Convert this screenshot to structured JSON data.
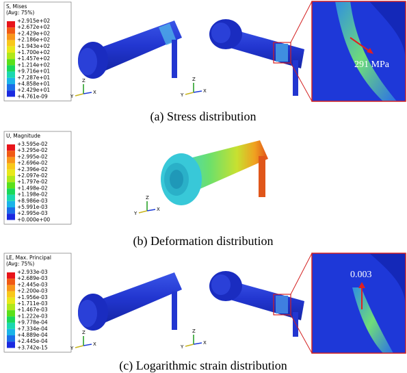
{
  "panels": [
    {
      "legend": {
        "title": [
          "S, Mises",
          "(Avg: 75%)"
        ],
        "labels": [
          "+2.915e+02",
          "+2.672e+02",
          "+2.429e+02",
          "+2.186e+02",
          "+1.943e+02",
          "+1.700e+02",
          "+1.457e+02",
          "+1.214e+02",
          "+9.716e+01",
          "+7.287e+01",
          "+4.858e+01",
          "+2.429e+01",
          "+4.761e-09"
        ]
      },
      "annotation": "291 MPa",
      "axes": [
        "Z",
        "Y",
        "X"
      ],
      "caption": "(a) Stress distribution"
    },
    {
      "legend": {
        "title": [
          "U, Magnitude"
        ],
        "labels": [
          "+3.595e-02",
          "+3.295e-02",
          "+2.995e-02",
          "+2.696e-02",
          "+2.396e-02",
          "+2.097e-02",
          "+1.797e-02",
          "+1.498e-02",
          "+1.198e-02",
          "+8.986e-03",
          "+5.991e-03",
          "+2.995e-03",
          "+0.000e+00"
        ]
      },
      "axes": [
        "Z",
        "Y",
        "X"
      ],
      "caption": "(b) Deformation distribution"
    },
    {
      "legend": {
        "title": [
          "LE, Max. Principal",
          "(Avg: 75%)"
        ],
        "labels": [
          "+2.933e-03",
          "+2.689e-03",
          "+2.445e-03",
          "+2.200e-03",
          "+1.956e-03",
          "+1.711e-03",
          "+1.467e-03",
          "+1.222e-03",
          "+9.778e-04",
          "+7.334e-04",
          "+4.889e-04",
          "+2.445e-04",
          "+3.742e-15"
        ]
      },
      "annotation": "0.003",
      "axes": [
        "Z",
        "Y",
        "X"
      ],
      "caption": "(c) Logarithmic strain distribution"
    }
  ]
}
